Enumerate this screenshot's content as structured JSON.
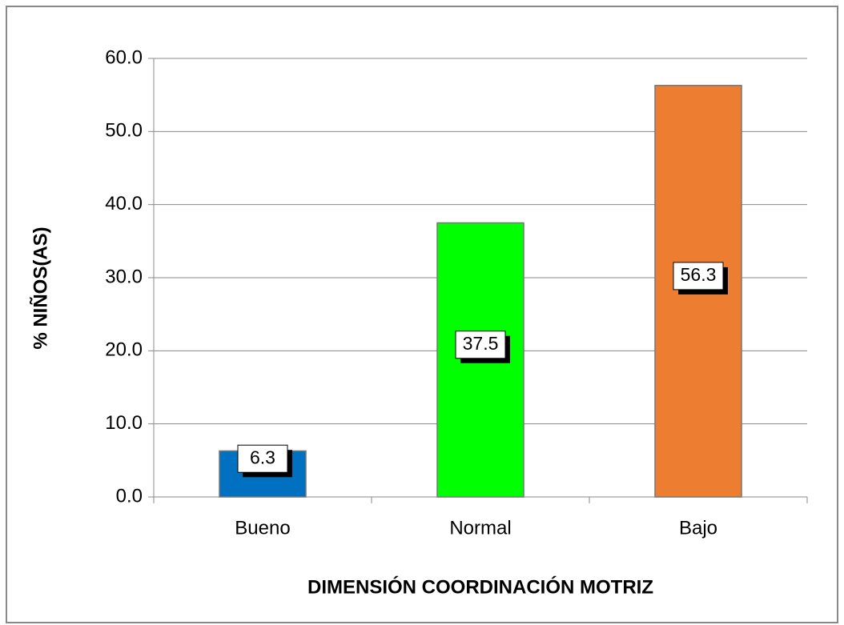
{
  "chart_data": {
    "type": "bar",
    "x_label": "DIMENSIÓN COORDINACIÓN MOTRIZ",
    "y_label": "% NIÑOS(AS)",
    "categories": [
      "Bueno",
      "Normal",
      "Bajo"
    ],
    "values": [
      6.3,
      37.5,
      56.3
    ],
    "colors": [
      "#0070c0",
      "#00ff00",
      "#ed7d31"
    ],
    "ylim": [
      0,
      60
    ],
    "yticks": [
      {
        "value": 0,
        "label": "0.0"
      },
      {
        "value": 10,
        "label": "10.0"
      },
      {
        "value": 20,
        "label": "20.0"
      },
      {
        "value": 30,
        "label": "30.0"
      },
      {
        "value": 40,
        "label": "40.0"
      },
      {
        "value": 50,
        "label": "50.0"
      },
      {
        "value": 60,
        "label": "60.0"
      }
    ],
    "grid": true
  }
}
